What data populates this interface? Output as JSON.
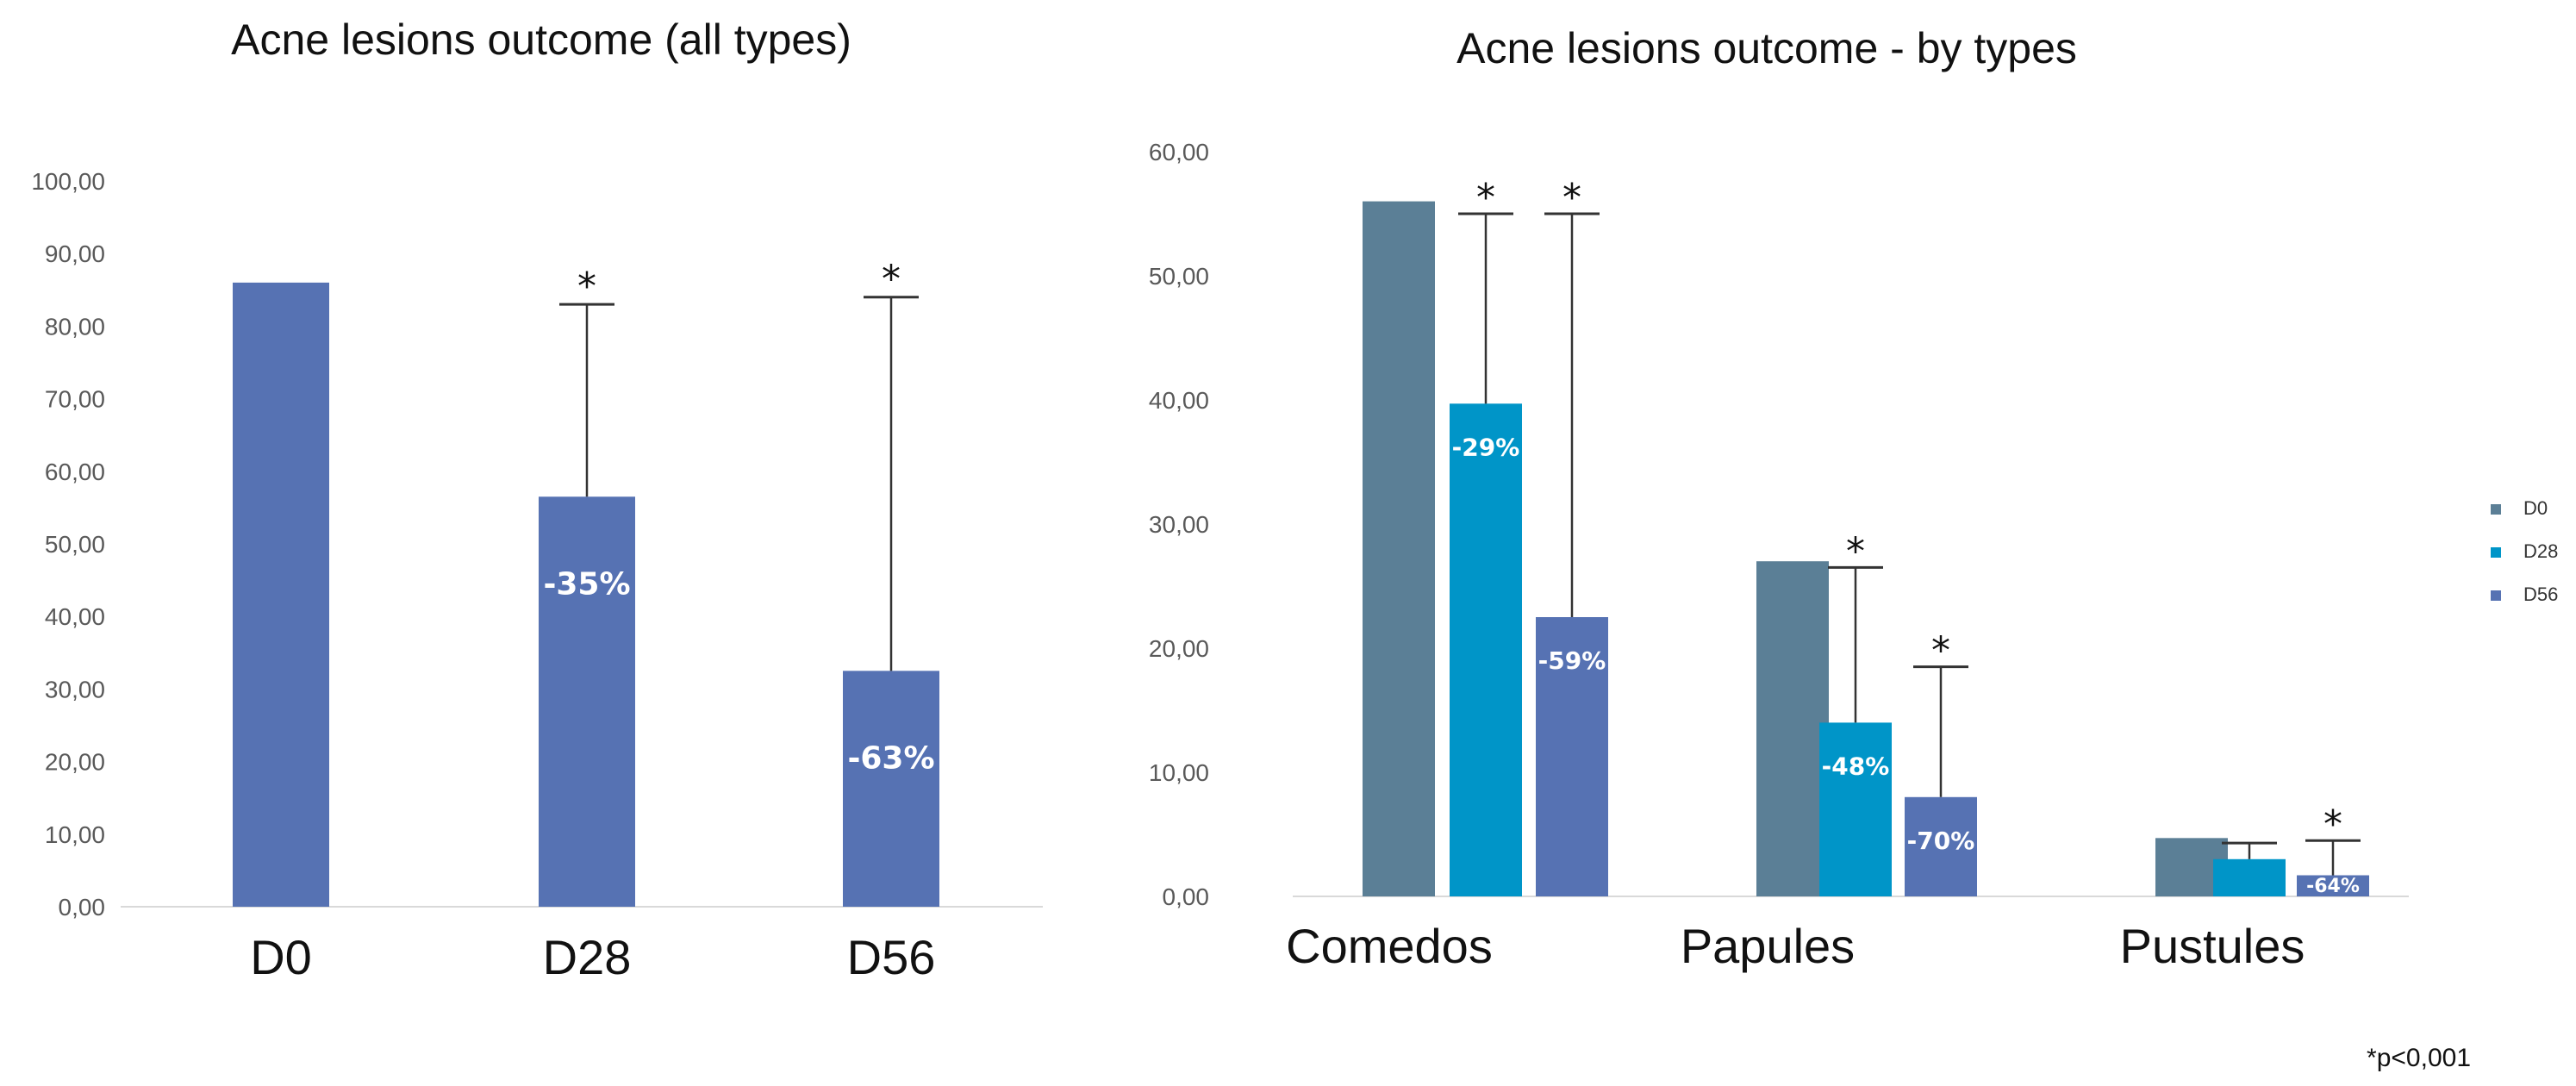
{
  "footnote": "*p<0,001",
  "chart_data": [
    {
      "type": "bar",
      "title": "Acne lesions outcome (all types)",
      "categories": [
        "D0",
        "D28",
        "D56"
      ],
      "values": [
        86,
        56.5,
        32.5
      ],
      "error_upper": [
        null,
        83,
        84
      ],
      "pct_labels": [
        "",
        "-35%",
        "-63%"
      ],
      "significance": [
        "",
        "*",
        "*"
      ],
      "ylim": [
        0,
        100
      ],
      "ytick_step": 10,
      "ytick_labels": [
        "0,00",
        "10,00",
        "20,00",
        "30,00",
        "40,00",
        "50,00",
        "60,00",
        "70,00",
        "80,00",
        "90,00",
        "100,00"
      ],
      "color": "#5672B3",
      "grid": false
    },
    {
      "type": "bar",
      "title": "Acne lesions outcome - by types",
      "categories": [
        "Comedos",
        "Papules",
        "Pustules"
      ],
      "ylim": [
        0,
        60
      ],
      "ytick_step": 10,
      "ytick_labels": [
        "0,00",
        "10,00",
        "20,00",
        "30,00",
        "40,00",
        "50,00",
        "60,00"
      ],
      "legend_position": "right",
      "series": [
        {
          "name": "D0",
          "color": "#5B7F96",
          "values": [
            56,
            27,
            4.7
          ],
          "error_upper": [
            null,
            null,
            null
          ],
          "pct_labels": [
            "",
            "",
            ""
          ],
          "significance": [
            "",
            "",
            ""
          ]
        },
        {
          "name": "D28",
          "color": "#0095C8",
          "values": [
            39.7,
            14,
            3
          ],
          "error_upper": [
            55,
            26.5,
            4.3
          ],
          "pct_labels": [
            "-29%",
            "-48%",
            ""
          ],
          "significance": [
            "*",
            "*",
            ""
          ]
        },
        {
          "name": "D56",
          "color": "#5672B3",
          "values": [
            22.5,
            8,
            1.7
          ],
          "error_upper": [
            55,
            18.5,
            4.5
          ],
          "pct_labels": [
            "-59%",
            "-70%",
            "-64%"
          ],
          "significance": [
            "*",
            "*",
            "*"
          ]
        }
      ],
      "grid": false
    }
  ]
}
